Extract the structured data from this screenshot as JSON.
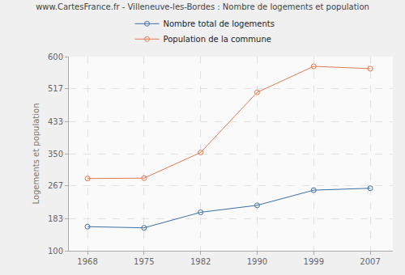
{
  "chart_data": {
    "type": "line",
    "title": "www.CartesFrance.fr - Villeneuve-les-Bordes : Nombre de logements et population",
    "y_label": "Logements et population",
    "categories": [
      "1968",
      "1975",
      "1982",
      "1990",
      "1999",
      "2007"
    ],
    "series": [
      {
        "name": "Nombre total de logements",
        "color": "#3e6fa3",
        "marker": "circle-open",
        "values": [
          162,
          159,
          199,
          217,
          256,
          261
        ]
      },
      {
        "name": "Population de la commune",
        "color": "#e07b53",
        "marker": "circle-open",
        "values": [
          286,
          287,
          353,
          508,
          575,
          569
        ]
      }
    ],
    "ylim": [
      100,
      600
    ],
    "yticks": [
      100,
      183,
      267,
      350,
      433,
      517,
      600
    ],
    "grid": true,
    "legend": "top"
  }
}
